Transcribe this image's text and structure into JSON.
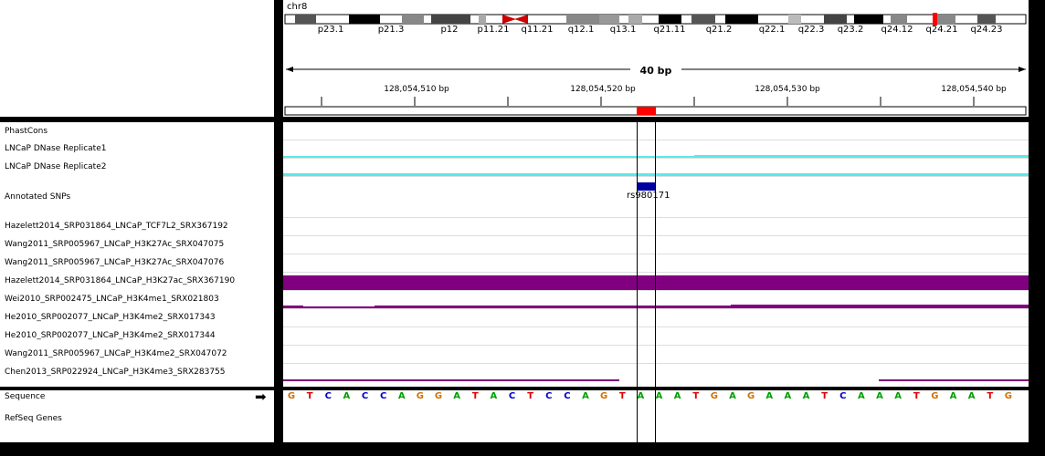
{
  "header": {
    "chromosome": "chr8",
    "span": "40 bp"
  },
  "ideogram": {
    "band_labels": [
      "p23.1",
      "p21.3",
      "p12",
      "p11.21",
      "q11.21",
      "q12.1",
      "q13.1",
      "q21.11",
      "q21.2",
      "q22.1",
      "q22.3",
      "q23.2",
      "q24.12",
      "q24.21",
      "q24.23"
    ],
    "current_region_color": "#ff0000",
    "centromere_color": "#cc0000"
  },
  "ruler": {
    "tick_labels": [
      "128,054,510 bp",
      "128,054,520 bp",
      "128,054,530 bp",
      "128,054,540 bp"
    ]
  },
  "tracks": [
    "PhastCons",
    "LNCaP DNase Replicate1",
    "LNCaP DNase Replicate2",
    "Annotated SNPs",
    "Hazelett2014_SRP031864_LNCaP_TCF7L2_SRX367192",
    "Wang2011_SRP005967_LNCaP_H3K27Ac_SRX047075",
    "Wang2011_SRP005967_LNCaP_H3K27Ac_SRX047076",
    "Hazelett2014_SRP031864_LNCaP_H3K27ac_SRX367190",
    "Wei2010_SRP002475_LNCaP_H3K4me1_SRX021803",
    "He2010_SRP002077_LNCaP_H3K4me2_SRX017343",
    "He2010_SRP002077_LNCaP_H3K4me2_SRX017344",
    "Wang2011_SRP005967_LNCaP_H3K4me2_SRX047072",
    "Chen2013_SRP022924_LNCaP_H3K4me3_SRX283755"
  ],
  "snp": {
    "id": "rs980171"
  },
  "sequence": {
    "label": "Sequence",
    "bases": "GTCACCAGGATACTCCAGTAAATGAGAAATCAAATGAATG",
    "colors": {
      "A": "#00a000",
      "C": "#0000c8",
      "G": "#d17105",
      "T": "#e00000"
    }
  },
  "genes": {
    "label": "RefSeq Genes"
  },
  "colors": {
    "dnase": "#5ee8e8",
    "chip_signal": "#800080",
    "snp_feature": "#0000a0"
  }
}
